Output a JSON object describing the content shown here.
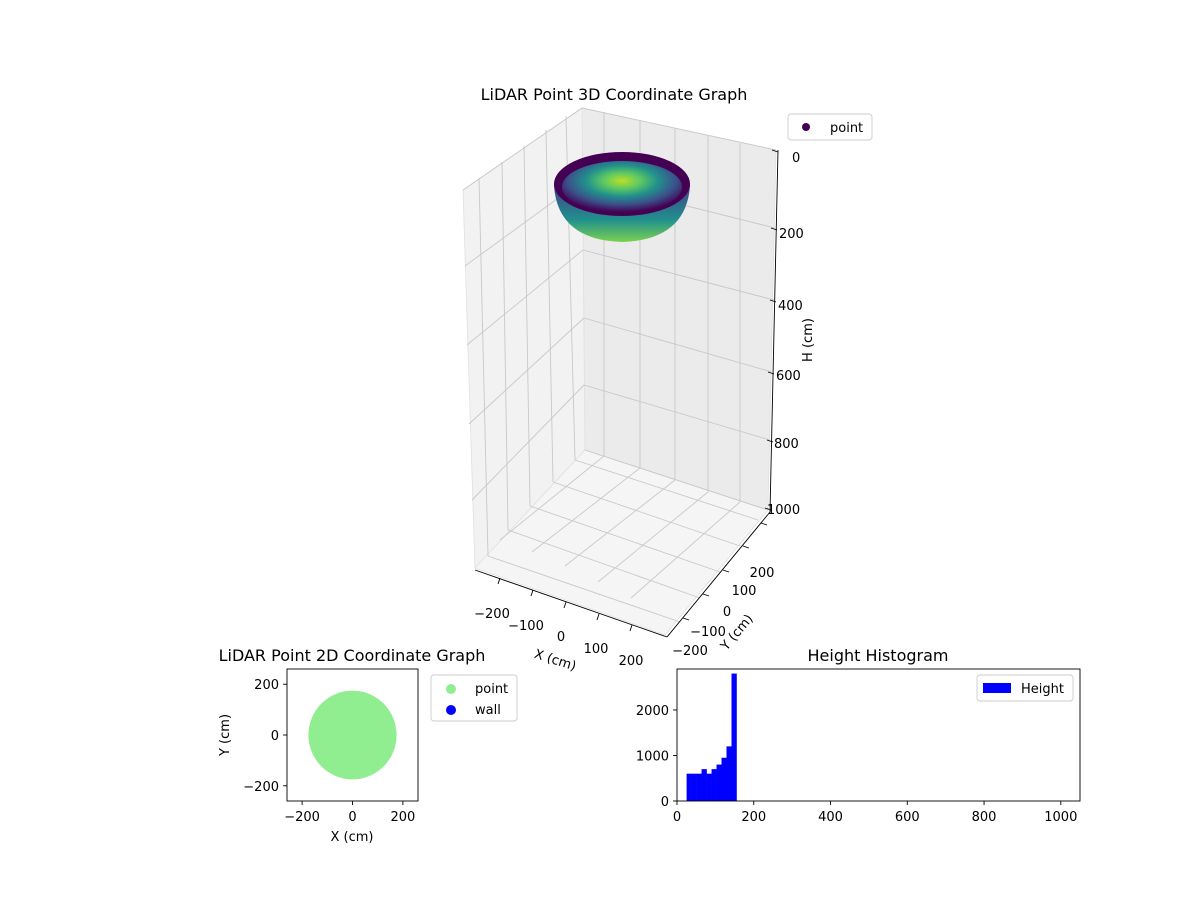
{
  "chart_data": [
    {
      "type": "scatter3d",
      "title": "LiDAR Point 3D Coordinate Graph",
      "xlabel": "X (cm)",
      "ylabel": "Y (cm)",
      "zlabel": "H (cm)",
      "xticks": [
        "−200",
        "−100",
        "0",
        "100",
        "200"
      ],
      "yticks": [
        "−200",
        "−100",
        "0",
        "100",
        "200"
      ],
      "zticks": [
        "0",
        "200",
        "400",
        "600",
        "800",
        "1000"
      ],
      "xlim": [
        -250,
        250
      ],
      "ylim": [
        -250,
        250
      ],
      "zlim": [
        0,
        1050
      ],
      "z_inverted": true,
      "legend": [
        {
          "label": "point",
          "color": "#440154"
        }
      ],
      "legend_position": "top-right",
      "colormap": "viridis",
      "shape": "hemispherical bowl, radius ~175 cm, height ~30 to ~150 cm"
    },
    {
      "type": "scatter",
      "title": "LiDAR Point 2D Coordinate Graph",
      "xlabel": "X (cm)",
      "ylabel": "Y (cm)",
      "xlim": [
        -260,
        260
      ],
      "ylim": [
        -260,
        260
      ],
      "xticks": [
        "−200",
        "0",
        "200"
      ],
      "yticks": [
        "−200",
        "0",
        "200"
      ],
      "point_disc": {
        "center": [
          0,
          0
        ],
        "radius": 175
      },
      "legend": [
        {
          "label": "point",
          "color": "#90ee90"
        },
        {
          "label": "wall",
          "color": "#0000ff"
        }
      ],
      "legend_position": "outside-right"
    },
    {
      "type": "histogram",
      "title": "Height Histogram",
      "legend": [
        {
          "label": "Height",
          "color": "#0000ff"
        }
      ],
      "legend_position": "top-right",
      "xlim": [
        0,
        1050
      ],
      "ylim": [
        0,
        2900
      ],
      "xticks": [
        "0",
        "200",
        "400",
        "600",
        "800",
        "1000"
      ],
      "yticks": [
        "0",
        "1000",
        "2000"
      ],
      "bins": [
        {
          "x0": 25,
          "x1": 38,
          "count": 600
        },
        {
          "x0": 38,
          "x1": 51,
          "count": 600
        },
        {
          "x0": 51,
          "x1": 64,
          "count": 600
        },
        {
          "x0": 64,
          "x1": 77,
          "count": 700
        },
        {
          "x0": 77,
          "x1": 90,
          "count": 600
        },
        {
          "x0": 90,
          "x1": 103,
          "count": 700
        },
        {
          "x0": 103,
          "x1": 116,
          "count": 800
        },
        {
          "x0": 116,
          "x1": 129,
          "count": 950
        },
        {
          "x0": 129,
          "x1": 142,
          "count": 1200
        },
        {
          "x0": 142,
          "x1": 155,
          "count": 2800
        }
      ]
    }
  ]
}
